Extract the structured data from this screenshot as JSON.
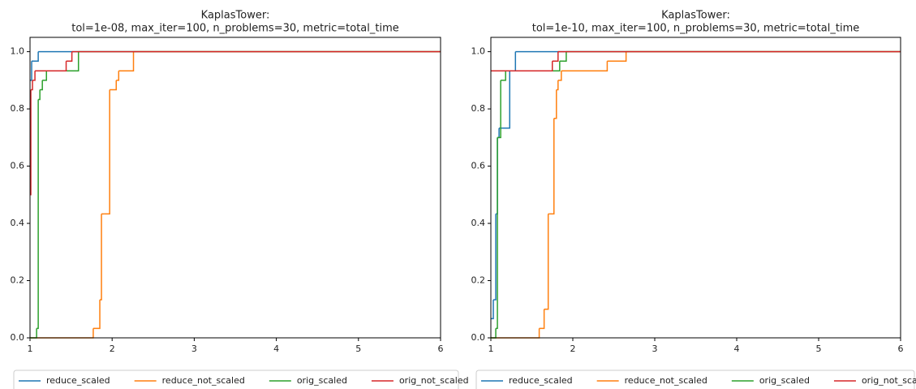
{
  "chart_data": [
    {
      "type": "line",
      "steps": "post",
      "title": [
        "KaplasTower:",
        "tol=1e-08, max_iter=100, n_problems=30, metric=total_time"
      ],
      "xlim": [
        1,
        6
      ],
      "ylim": [
        0,
        1.05
      ],
      "xticks": [
        1,
        2,
        3,
        4,
        5,
        6
      ],
      "yticks": [
        {
          "value": 0,
          "label": "0.0"
        },
        {
          "value": 0.2,
          "label": "0.2"
        },
        {
          "value": 0.4,
          "label": "0.4"
        },
        {
          "value": 0.6,
          "label": "0.6"
        },
        {
          "value": 0.8,
          "label": "0.8"
        },
        {
          "value": 1,
          "label": "1.0"
        }
      ],
      "legend": "below",
      "series": [
        {
          "name": "reduce_scaled",
          "color": "#1f77b4",
          "x": [
            1,
            1.02,
            1.1,
            6
          ],
          "values": [
            0.9,
            0.967,
            1.0,
            1.0
          ]
        },
        {
          "name": "reduce_not_scaled",
          "color": "#ff7f0e",
          "x": [
            1,
            1.77,
            1.85,
            1.87,
            1.9,
            1.97,
            2.05,
            2.08,
            2.26,
            6
          ],
          "values": [
            0,
            0.033,
            0.133,
            0.433,
            0.433,
            0.867,
            0.9,
            0.933,
            1.0,
            1.0
          ]
        },
        {
          "name": "orig_scaled",
          "color": "#2ca02c",
          "x": [
            1,
            1.08,
            1.1,
            1.12,
            1.15,
            1.2,
            1.59,
            6
          ],
          "values": [
            0,
            0.033,
            0.833,
            0.867,
            0.9,
            0.933,
            1.0,
            1.0
          ]
        },
        {
          "name": "orig_not_scaled",
          "color": "#d62728",
          "x": [
            1,
            1.01,
            1.03,
            1.06,
            1.44,
            1.51,
            6
          ],
          "values": [
            0.5,
            0.867,
            0.9,
            0.933,
            0.967,
            1.0,
            1.0
          ]
        }
      ]
    },
    {
      "type": "line",
      "steps": "post",
      "title": [
        "KaplasTower:",
        "tol=1e-10, max_iter=100, n_problems=30, metric=total_time"
      ],
      "xlim": [
        1,
        6
      ],
      "ylim": [
        0,
        1.05
      ],
      "xticks": [
        1,
        2,
        3,
        4,
        5,
        6
      ],
      "yticks": [
        {
          "value": 0,
          "label": "0.0"
        },
        {
          "value": 0.2,
          "label": "0.2"
        },
        {
          "value": 0.4,
          "label": "0.4"
        },
        {
          "value": 0.6,
          "label": "0.6"
        },
        {
          "value": 0.8,
          "label": "0.8"
        },
        {
          "value": 1,
          "label": "1.0"
        }
      ],
      "legend": "below",
      "series": [
        {
          "name": "reduce_scaled",
          "color": "#1f77b4",
          "x": [
            1,
            1.03,
            1.06,
            1.08,
            1.1,
            1.23,
            1.3,
            6
          ],
          "values": [
            0.067,
            0.133,
            0.433,
            0.7,
            0.733,
            0.933,
            1.0,
            1.0
          ]
        },
        {
          "name": "reduce_not_scaled",
          "color": "#ff7f0e",
          "x": [
            1,
            1.59,
            1.65,
            1.7,
            1.72,
            1.77,
            1.8,
            1.82,
            1.86,
            2.42,
            2.65,
            6
          ],
          "values": [
            0,
            0.033,
            0.1,
            0.433,
            0.433,
            0.767,
            0.867,
            0.9,
            0.933,
            0.967,
            1.0,
            1.0
          ]
        },
        {
          "name": "orig_scaled",
          "color": "#2ca02c",
          "x": [
            1,
            1.06,
            1.08,
            1.12,
            1.18,
            1.84,
            1.92,
            6
          ],
          "values": [
            0,
            0.033,
            0.7,
            0.9,
            0.933,
            0.967,
            1.0,
            1.0
          ]
        },
        {
          "name": "orig_not_scaled",
          "color": "#d62728",
          "x": [
            1,
            1.75,
            1.82,
            6
          ],
          "values": [
            0.933,
            0.967,
            1.0,
            1.0
          ]
        }
      ]
    }
  ]
}
